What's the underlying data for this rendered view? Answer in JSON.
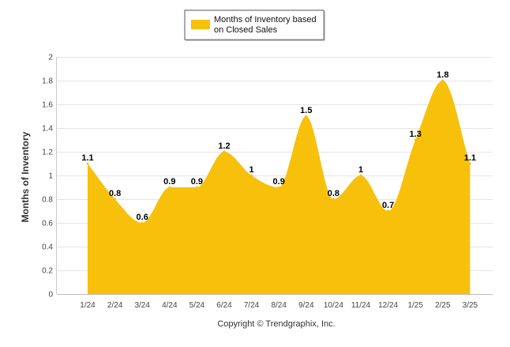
{
  "chart_data": {
    "type": "area",
    "categories": [
      "1/24",
      "2/24",
      "3/24",
      "4/24",
      "5/24",
      "6/24",
      "7/24",
      "8/24",
      "9/24",
      "10/24",
      "11/24",
      "12/24",
      "1/25",
      "2/25",
      "3/25"
    ],
    "series": [
      {
        "name": "Months of Inventory based on Closed Sales",
        "values": [
          1.1,
          0.8,
          0.6,
          0.9,
          0.9,
          1.2,
          1,
          0.9,
          1.5,
          0.8,
          1,
          0.7,
          1.3,
          1.8,
          1.1
        ],
        "labels": [
          "1.1",
          "0.8",
          "0.6",
          "0.9",
          "0.9",
          "1.2",
          "1",
          "0.9",
          "1.5",
          "0.8",
          "1",
          "0.7",
          "1.3",
          "1.8",
          "1.1"
        ],
        "color": "#F7C00B"
      }
    ],
    "legend_lines": [
      "Months of Inventory based",
      "on Closed Sales"
    ],
    "legend_position": "top-center",
    "xlabel": "",
    "ylabel": "Months of Inventory",
    "ylim": [
      0,
      2
    ],
    "y_ticks": [
      "0",
      "0.2",
      "0.4",
      "0.6",
      "0.8",
      "1",
      "1.2",
      "1.4",
      "1.6",
      "1.8",
      "2"
    ],
    "grid": true,
    "grid_color": "#E4E4E4"
  },
  "footer": {
    "copyright": "Copyright © Trendgraphix, Inc."
  }
}
